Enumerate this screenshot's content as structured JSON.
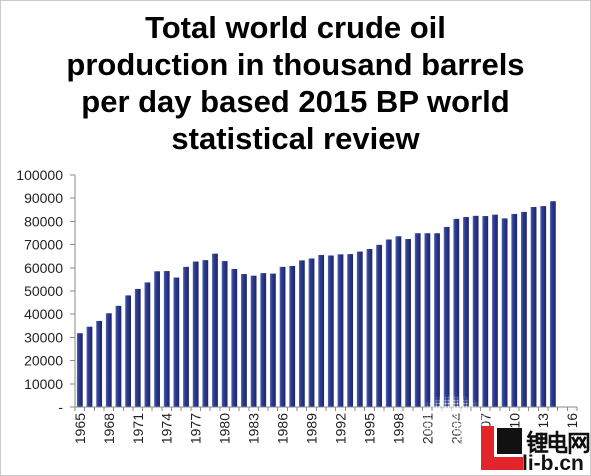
{
  "chart_data": {
    "type": "bar",
    "title": "Total world crude oil production in thousand barrels per day based 2015 BP world statistical review",
    "xlabel": "",
    "ylabel": "",
    "x": [
      1965,
      1966,
      1967,
      1968,
      1969,
      1970,
      1971,
      1972,
      1973,
      1974,
      1975,
      1976,
      1977,
      1978,
      1979,
      1980,
      1981,
      1982,
      1983,
      1984,
      1985,
      1986,
      1987,
      1988,
      1989,
      1990,
      1991,
      1992,
      1993,
      1994,
      1995,
      1996,
      1997,
      1998,
      1999,
      2000,
      2001,
      2002,
      2003,
      2004,
      2005,
      2006,
      2007,
      2008,
      2009,
      2010,
      2011,
      2012,
      2013,
      2014
    ],
    "values": [
      31800,
      34600,
      37100,
      40400,
      43600,
      48100,
      50900,
      53700,
      58500,
      58600,
      55800,
      60400,
      62700,
      63300,
      66100,
      62900,
      59500,
      57300,
      56600,
      57700,
      57500,
      60400,
      60800,
      63200,
      64000,
      65500,
      65300,
      65800,
      65900,
      67000,
      68100,
      69900,
      72200,
      73600,
      72400,
      74900,
      74900,
      74900,
      77600,
      81100,
      81900,
      82400,
      82300,
      82900,
      81300,
      83200,
      84100,
      86200,
      86600,
      88700
    ],
    "xlim": [
      1965,
      2016
    ],
    "ylim": [
      0,
      100000
    ],
    "yticks": [
      0,
      10000,
      20000,
      30000,
      40000,
      50000,
      60000,
      70000,
      80000,
      90000,
      100000
    ],
    "ytick_labels": [
      "-",
      "10000",
      "20000",
      "30000",
      "40000",
      "50000",
      "60000",
      "70000",
      "80000",
      "90000",
      "100000"
    ],
    "xtick_labels": [
      "1965",
      "1968",
      "1971",
      "1974",
      "1977",
      "1980",
      "1983",
      "1986",
      "1989",
      "1992",
      "1995",
      "1998",
      "2001",
      "2004",
      "2007",
      "2010",
      "2013",
      "2016"
    ],
    "grid": false,
    "legend": "none",
    "bar_color": "#2D3B8E"
  },
  "watermark": {
    "brand_text": "锂电网",
    "domain_text": "li-b.cn",
    "logo_colors": [
      "#E3242B",
      "#111111"
    ]
  }
}
